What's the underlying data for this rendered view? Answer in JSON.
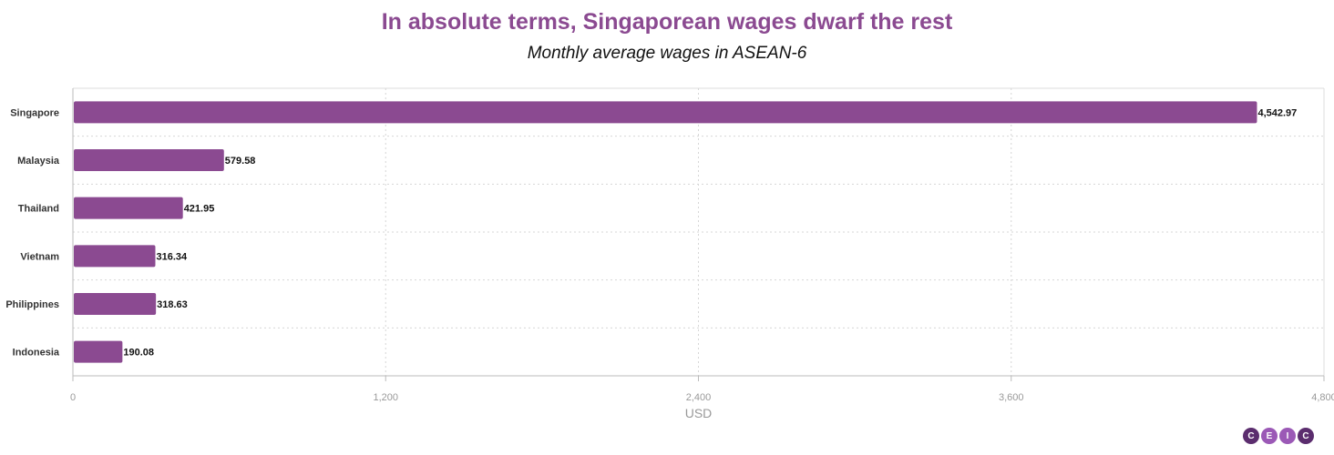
{
  "chart_data": {
    "type": "bar",
    "orientation": "horizontal",
    "title": "In absolute terms, Singaporean wages dwarf the rest",
    "subtitle": "Monthly average wages in ASEAN-6",
    "categories": [
      "Singapore",
      "Malaysia",
      "Thailand",
      "Vietnam",
      "Philippines",
      "Indonesia"
    ],
    "values": [
      4542.97,
      579.58,
      421.95,
      316.34,
      318.63,
      190.08
    ],
    "value_labels": [
      "4,542.97",
      "579.58",
      "421.95",
      "316.34",
      "318.63",
      "190.08"
    ],
    "xlabel": "USD",
    "ylabel": "",
    "xlim": [
      0,
      4800
    ],
    "xticks": [
      0,
      1200,
      2400,
      3600,
      4800
    ],
    "xtick_labels": [
      "0",
      "1,200",
      "2,400",
      "3,600",
      "4,800"
    ],
    "grid": true,
    "bar_color": "#8b4a91"
  },
  "logo": {
    "letters": [
      "C",
      "E",
      "I",
      "C"
    ]
  }
}
